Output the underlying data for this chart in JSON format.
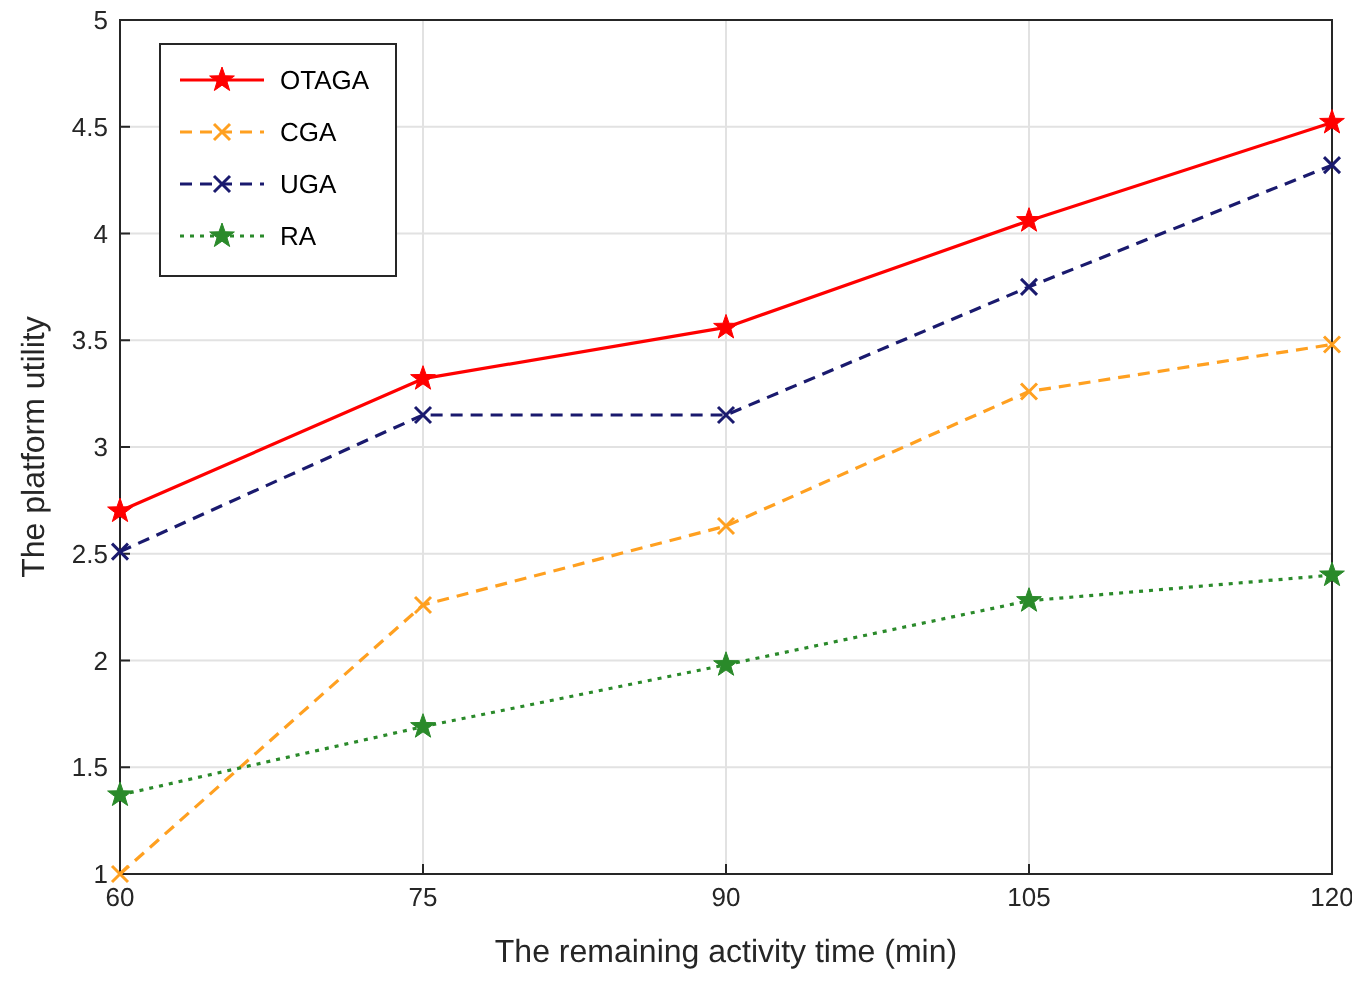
{
  "chart_data": {
    "type": "line",
    "xlabel": "The remaining activity time (min)",
    "ylabel": "The platform utility",
    "x": [
      60,
      75,
      90,
      105,
      120
    ],
    "xlim": [
      60,
      120
    ],
    "xticks": [
      60,
      75,
      90,
      105,
      120
    ],
    "ylim": [
      1,
      5
    ],
    "yticks": [
      1,
      1.5,
      2,
      2.5,
      3,
      3.5,
      4,
      4.5,
      5
    ],
    "grid": true,
    "legend": "top left",
    "series": [
      {
        "name": "OTAGA",
        "color": "#ff0000",
        "values": [
          2.7,
          3.32,
          3.56,
          4.06,
          4.52
        ],
        "marker": "star",
        "line_style": "solid"
      },
      {
        "name": "CGA",
        "color": "#ffa020",
        "values": [
          1.0,
          2.26,
          2.63,
          3.26,
          3.48
        ],
        "marker": "cross",
        "line_style": "dashed"
      },
      {
        "name": "UGA",
        "color": "#1a1a6e",
        "values": [
          2.51,
          3.15,
          3.15,
          3.75,
          4.32
        ],
        "marker": "cross",
        "line_style": "dashed"
      },
      {
        "name": "RA",
        "color": "#2a8a2a",
        "values": [
          1.37,
          1.69,
          1.98,
          2.28,
          2.4
        ],
        "marker": "star",
        "line_style": "dotted"
      }
    ]
  }
}
